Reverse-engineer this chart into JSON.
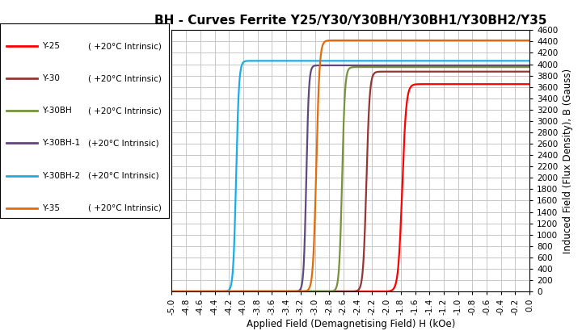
{
  "title": "BH - Curves Ferrite Y25/Y30/Y30BH/Y30BH1/Y30BH2/Y35",
  "xlabel": "Applied Field (Demagnetising Field) H (kOe)",
  "ylabel": "Induced Field (Flux Density), B (Gauss)",
  "xlim": [
    -5.0,
    0.0
  ],
  "ylim": [
    0,
    4600
  ],
  "yticks": [
    0,
    200,
    400,
    600,
    800,
    1000,
    1200,
    1400,
    1600,
    1800,
    2000,
    2200,
    2400,
    2600,
    2800,
    3000,
    3200,
    3400,
    3600,
    3800,
    4000,
    4200,
    4400,
    4600
  ],
  "xticks": [
    -5.0,
    -4.8,
    -4.6,
    -4.4,
    -4.2,
    -4.0,
    -3.8,
    -3.6,
    -3.4,
    -3.2,
    -3.0,
    -2.8,
    -2.6,
    -2.4,
    -2.2,
    -2.0,
    -1.8,
    -1.6,
    -1.4,
    -1.2,
    -1.0,
    -0.8,
    -0.6,
    -0.4,
    -0.2,
    0.0
  ],
  "series": [
    {
      "label": "Y-25",
      "sublabel": "( +20°C Intrinsic)",
      "color": "#ff0000",
      "Bsat": 3650,
      "Hc": -1.78,
      "steepness": 18.0
    },
    {
      "label": "Y-30",
      "sublabel": "( +20°C Intrinsic)",
      "color": "#943634",
      "Bsat": 3870,
      "Hc": -2.28,
      "steepness": 22.0
    },
    {
      "label": "Y-30BH",
      "sublabel": "( +20°C Intrinsic)",
      "color": "#76923c",
      "Bsat": 3950,
      "Hc": -2.62,
      "steepness": 25.0
    },
    {
      "label": "Y-30BH-1",
      "sublabel": "(+20°C Intrinsic)",
      "color": "#60497a",
      "Bsat": 3980,
      "Hc": -3.12,
      "steepness": 28.0
    },
    {
      "label": "Y-30BH-2",
      "sublabel": "(+20°C Intrinsic)",
      "color": "#17aee8",
      "Bsat": 4060,
      "Hc": -4.1,
      "steepness": 25.0
    },
    {
      "label": "Y-35",
      "sublabel": "( +20°C Intrinsic)",
      "color": "#e36c09",
      "Bsat": 4420,
      "Hc": -2.98,
      "steepness": 22.0
    }
  ],
  "bg_color": "#ffffff",
  "grid_color": "#bfbfbf",
  "legend_box_color": "#ffffff",
  "legend_edge_color": "#000000",
  "title_fontsize": 11,
  "label_fontsize": 8.5,
  "tick_fontsize": 7.5,
  "legend_fontsize": 7.5
}
